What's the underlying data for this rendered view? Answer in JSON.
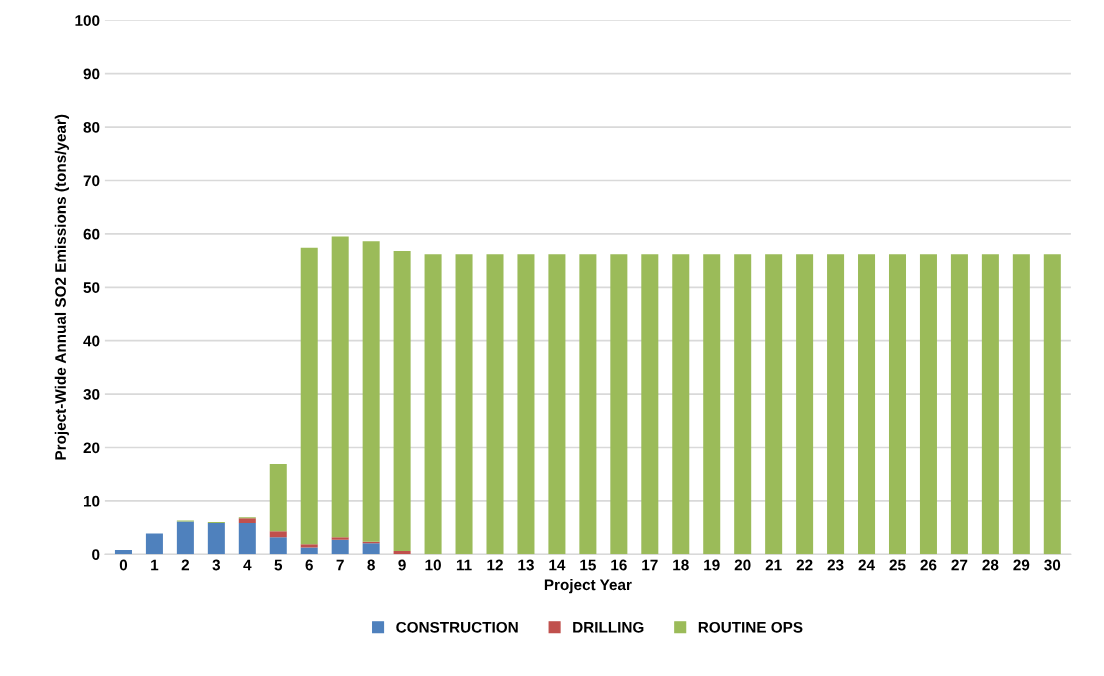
{
  "chart_data": {
    "type": "bar",
    "stacked": true,
    "xlabel": "Project Year",
    "ylabel": "Project-Wide Annual SO2 Emissions (tons/year)",
    "categories": [
      "0",
      "1",
      "2",
      "3",
      "4",
      "5",
      "6",
      "7",
      "8",
      "9",
      "10",
      "11",
      "12",
      "13",
      "14",
      "15",
      "16",
      "17",
      "18",
      "19",
      "20",
      "21",
      "22",
      "23",
      "24",
      "25",
      "26",
      "27",
      "28",
      "29",
      "30"
    ],
    "series": [
      {
        "name": "CONSTRUCTION",
        "color": "#4f81bd",
        "values": [
          0.8,
          3.9,
          6.15,
          5.85,
          5.85,
          3.2,
          1.3,
          2.75,
          2.05,
          0,
          0,
          0,
          0,
          0,
          0,
          0,
          0,
          0,
          0,
          0,
          0,
          0,
          0,
          0,
          0,
          0,
          0,
          0,
          0,
          0,
          0
        ]
      },
      {
        "name": "DRILLING",
        "color": "#c0504d",
        "values": [
          0,
          0,
          0,
          0,
          0.9,
          1.1,
          0.6,
          0.45,
          0.3,
          0.6,
          0,
          0,
          0,
          0,
          0,
          0,
          0,
          0,
          0,
          0,
          0,
          0,
          0,
          0,
          0,
          0,
          0,
          0,
          0,
          0,
          0
        ]
      },
      {
        "name": "ROUTINE OPS",
        "color": "#9bbb59",
        "values": [
          0,
          0,
          0.2,
          0.2,
          0.2,
          12.6,
          55.5,
          56.3,
          56.25,
          56.2,
          56.2,
          56.2,
          56.2,
          56.2,
          56.2,
          56.2,
          56.2,
          56.2,
          56.2,
          56.2,
          56.2,
          56.2,
          56.2,
          56.2,
          56.2,
          56.2,
          56.2,
          56.2,
          56.2,
          56.2,
          56.2
        ]
      }
    ],
    "ylim": [
      0,
      100
    ],
    "yticks": [
      0,
      10,
      20,
      30,
      40,
      50,
      60,
      70,
      80,
      90,
      100
    ],
    "grid": "y",
    "legend": "bottom"
  }
}
